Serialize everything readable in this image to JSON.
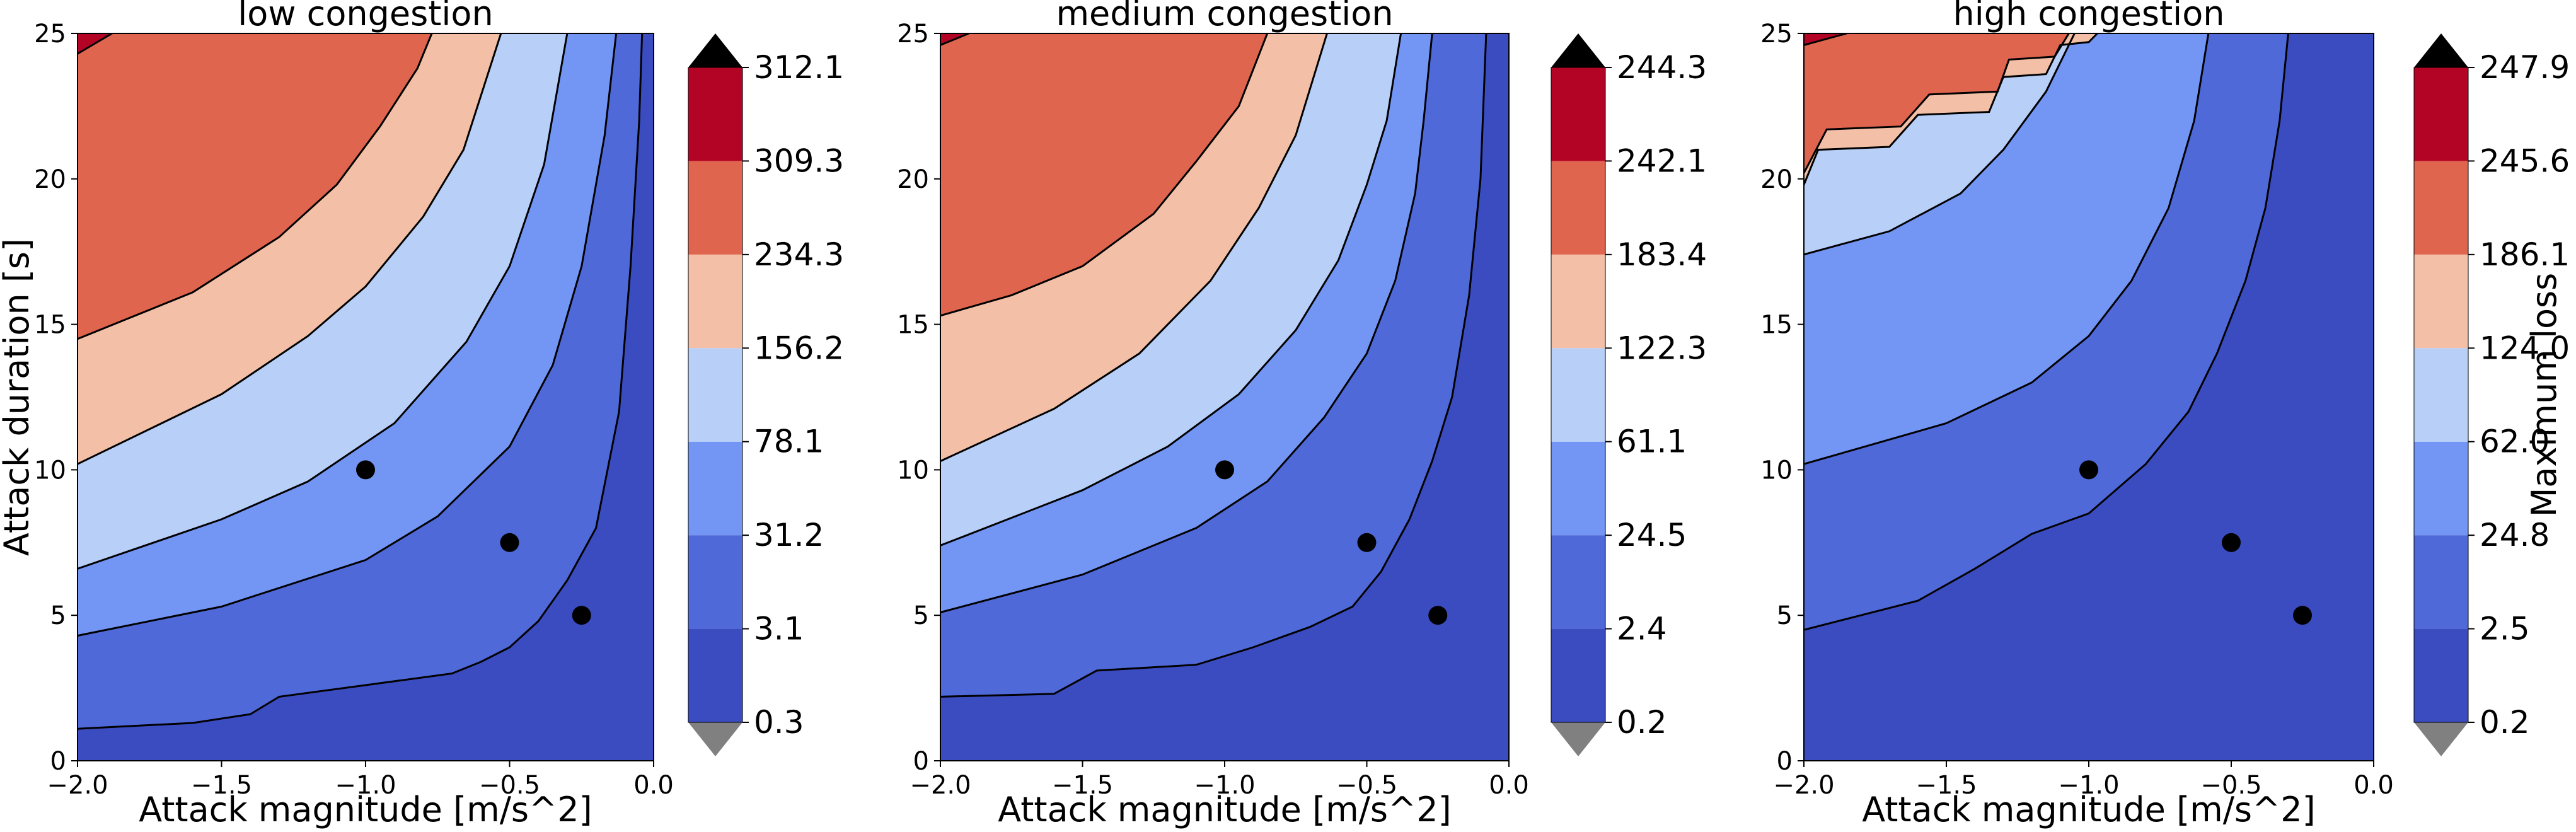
{
  "chart_data": [
    {
      "type": "contourf",
      "title": "low congestion",
      "xlabel": "Attack magnitude [m/s^2]",
      "ylabel": "Attack duration [s]",
      "xlim": [
        -2.0,
        0.0
      ],
      "ylim": [
        0,
        25
      ],
      "xticks": [
        "−2.0",
        "−1.5",
        "−1.0",
        "−0.5",
        "0.0"
      ],
      "yticks": [
        "0",
        "5",
        "10",
        "15",
        "20",
        "25"
      ],
      "colorbar": {
        "levels": [
          "0.3",
          "3.1",
          "31.2",
          "78.1",
          "156.2",
          "234.3",
          "309.3",
          "312.1"
        ],
        "extend": "both",
        "label": ""
      },
      "contour_lines": [
        [
          [
            -2.0,
            1.1
          ],
          [
            -1.6,
            1.3
          ],
          [
            -1.4,
            1.6
          ],
          [
            -1.3,
            2.2
          ],
          [
            -1.0,
            2.6
          ],
          [
            -0.7,
            3.0
          ],
          [
            -0.6,
            3.4
          ],
          [
            -0.5,
            3.9
          ],
          [
            -0.4,
            4.8
          ],
          [
            -0.3,
            6.2
          ],
          [
            -0.2,
            8.0
          ],
          [
            -0.12,
            12.0
          ],
          [
            -0.08,
            17.0
          ],
          [
            -0.05,
            22.0
          ],
          [
            -0.04,
            25.0
          ]
        ],
        [
          [
            -2.0,
            4.3
          ],
          [
            -1.5,
            5.3
          ],
          [
            -1.0,
            6.9
          ],
          [
            -0.75,
            8.4
          ],
          [
            -0.5,
            10.8
          ],
          [
            -0.35,
            13.6
          ],
          [
            -0.25,
            17.0
          ],
          [
            -0.17,
            21.5
          ],
          [
            -0.13,
            25.0
          ]
        ],
        [
          [
            -2.0,
            6.6
          ],
          [
            -1.5,
            8.3
          ],
          [
            -1.2,
            9.6
          ],
          [
            -0.9,
            11.6
          ],
          [
            -0.65,
            14.4
          ],
          [
            -0.5,
            17.0
          ],
          [
            -0.38,
            20.5
          ],
          [
            -0.3,
            25.0
          ]
        ],
        [
          [
            -2.0,
            10.2
          ],
          [
            -1.5,
            12.6
          ],
          [
            -1.2,
            14.6
          ],
          [
            -1.0,
            16.3
          ],
          [
            -0.8,
            18.7
          ],
          [
            -0.66,
            21.0
          ],
          [
            -0.53,
            25.0
          ]
        ],
        [
          [
            -2.0,
            14.5
          ],
          [
            -1.6,
            16.1
          ],
          [
            -1.3,
            18.0
          ],
          [
            -1.1,
            19.8
          ],
          [
            -0.95,
            21.8
          ],
          [
            -0.82,
            23.8
          ],
          [
            -0.77,
            25.0
          ]
        ],
        [
          [
            -2.0,
            24.3
          ],
          [
            -1.88,
            25.0
          ]
        ]
      ],
      "points": [
        [
          -1.0,
          10.0
        ],
        [
          -0.5,
          7.5
        ],
        [
          -0.25,
          5.0
        ]
      ]
    },
    {
      "type": "contourf",
      "title": "medium congestion",
      "xlabel": "Attack magnitude [m/s^2]",
      "ylabel": "",
      "xlim": [
        -2.0,
        0.0
      ],
      "ylim": [
        0,
        25
      ],
      "xticks": [
        "−2.0",
        "−1.5",
        "−1.0",
        "−0.5",
        "0.0"
      ],
      "yticks": [
        "0",
        "5",
        "10",
        "15",
        "20",
        "25"
      ],
      "colorbar": {
        "levels": [
          "0.2",
          "2.4",
          "24.5",
          "61.1",
          "122.3",
          "183.4",
          "242.1",
          "244.3"
        ],
        "extend": "both",
        "label": ""
      },
      "contour_lines": [
        [
          [
            -2.0,
            2.2
          ],
          [
            -1.6,
            2.3
          ],
          [
            -1.45,
            3.1
          ],
          [
            -1.1,
            3.3
          ],
          [
            -0.9,
            3.9
          ],
          [
            -0.7,
            4.6
          ],
          [
            -0.55,
            5.3
          ],
          [
            -0.45,
            6.5
          ],
          [
            -0.35,
            8.3
          ],
          [
            -0.27,
            10.3
          ],
          [
            -0.2,
            12.5
          ],
          [
            -0.14,
            16.0
          ],
          [
            -0.1,
            20.0
          ],
          [
            -0.08,
            25.0
          ]
        ],
        [
          [
            -2.0,
            5.1
          ],
          [
            -1.5,
            6.4
          ],
          [
            -1.1,
            8.0
          ],
          [
            -0.85,
            9.6
          ],
          [
            -0.65,
            11.8
          ],
          [
            -0.5,
            14.0
          ],
          [
            -0.4,
            16.5
          ],
          [
            -0.33,
            19.5
          ],
          [
            -0.3,
            22.0
          ],
          [
            -0.27,
            25.0
          ]
        ],
        [
          [
            -2.0,
            7.4
          ],
          [
            -1.5,
            9.3
          ],
          [
            -1.2,
            10.8
          ],
          [
            -0.95,
            12.6
          ],
          [
            -0.75,
            14.8
          ],
          [
            -0.6,
            17.2
          ],
          [
            -0.5,
            19.8
          ],
          [
            -0.43,
            22.0
          ],
          [
            -0.38,
            25.0
          ]
        ],
        [
          [
            -2.0,
            10.3
          ],
          [
            -1.6,
            12.1
          ],
          [
            -1.3,
            14.0
          ],
          [
            -1.05,
            16.5
          ],
          [
            -0.88,
            19.0
          ],
          [
            -0.75,
            21.5
          ],
          [
            -0.64,
            25.0
          ]
        ],
        [
          [
            -2.0,
            15.3
          ],
          [
            -1.75,
            16.0
          ],
          [
            -1.5,
            17.0
          ],
          [
            -1.25,
            18.8
          ],
          [
            -1.1,
            20.6
          ],
          [
            -0.95,
            22.5
          ],
          [
            -0.85,
            25.0
          ]
        ],
        [
          [
            -2.0,
            24.6
          ],
          [
            -1.9,
            25.0
          ]
        ]
      ],
      "points": [
        [
          -1.0,
          10.0
        ],
        [
          -0.5,
          7.5
        ],
        [
          -0.25,
          5.0
        ]
      ]
    },
    {
      "type": "contourf",
      "title": "high congestion",
      "xlabel": "Attack magnitude [m/s^2]",
      "ylabel": "",
      "xlim": [
        -2.0,
        0.0
      ],
      "ylim": [
        0,
        25
      ],
      "xticks": [
        "−2.0",
        "−1.5",
        "−1.0",
        "−0.5",
        "0.0"
      ],
      "yticks": [
        "0",
        "5",
        "10",
        "15",
        "20",
        "25"
      ],
      "colorbar": {
        "levels": [
          "0.2",
          "2.5",
          "24.8",
          "62.0",
          "124.0",
          "186.1",
          "245.6",
          "247.9"
        ],
        "extend": "both",
        "label": "Maximum loss"
      },
      "contour_lines": [
        [
          [
            -2.0,
            4.5
          ],
          [
            -1.6,
            5.5
          ],
          [
            -1.4,
            6.6
          ],
          [
            -1.2,
            7.8
          ],
          [
            -1.0,
            8.5
          ],
          [
            -0.8,
            10.2
          ],
          [
            -0.65,
            12.0
          ],
          [
            -0.55,
            14.0
          ],
          [
            -0.45,
            16.5
          ],
          [
            -0.38,
            19.0
          ],
          [
            -0.33,
            22.0
          ],
          [
            -0.3,
            25.0
          ]
        ],
        [
          [
            -2.0,
            10.2
          ],
          [
            -1.5,
            11.6
          ],
          [
            -1.2,
            13.0
          ],
          [
            -1.0,
            14.6
          ],
          [
            -0.85,
            16.5
          ],
          [
            -0.72,
            19.0
          ],
          [
            -0.63,
            22.0
          ],
          [
            -0.58,
            25.0
          ]
        ],
        [
          [
            -2.0,
            17.4
          ],
          [
            -1.7,
            18.2
          ],
          [
            -1.45,
            19.5
          ],
          [
            -1.3,
            21.0
          ],
          [
            -1.15,
            23.0
          ],
          [
            -1.05,
            25.0
          ]
        ],
        [
          [
            -2.0,
            19.8
          ],
          [
            -1.95,
            21.0
          ],
          [
            -1.7,
            21.1
          ],
          [
            -1.6,
            22.2
          ],
          [
            -1.35,
            22.3
          ],
          [
            -1.3,
            23.5
          ],
          [
            -1.15,
            23.6
          ],
          [
            -1.1,
            24.6
          ],
          [
            -1.0,
            24.7
          ],
          [
            -0.97,
            25.0
          ]
        ],
        [
          [
            -2.0,
            20.2
          ],
          [
            -1.92,
            21.7
          ],
          [
            -1.66,
            21.8
          ],
          [
            -1.56,
            22.9
          ],
          [
            -1.32,
            23.0
          ],
          [
            -1.28,
            24.1
          ],
          [
            -1.12,
            24.2
          ],
          [
            -1.07,
            25.0
          ]
        ],
        [
          [
            -2.0,
            24.6
          ],
          [
            -1.85,
            25.0
          ]
        ]
      ],
      "points": [
        [
          -1.0,
          10.0
        ],
        [
          -0.5,
          7.5
        ],
        [
          -0.25,
          5.0
        ]
      ]
    }
  ],
  "colors": {
    "bands": [
      "#3b4cc0",
      "#4f69d9",
      "#7396f5",
      "#b8cff8",
      "#f3c0a7",
      "#e0654f",
      "#b40426"
    ],
    "under": "#808080",
    "over": "#000000"
  }
}
